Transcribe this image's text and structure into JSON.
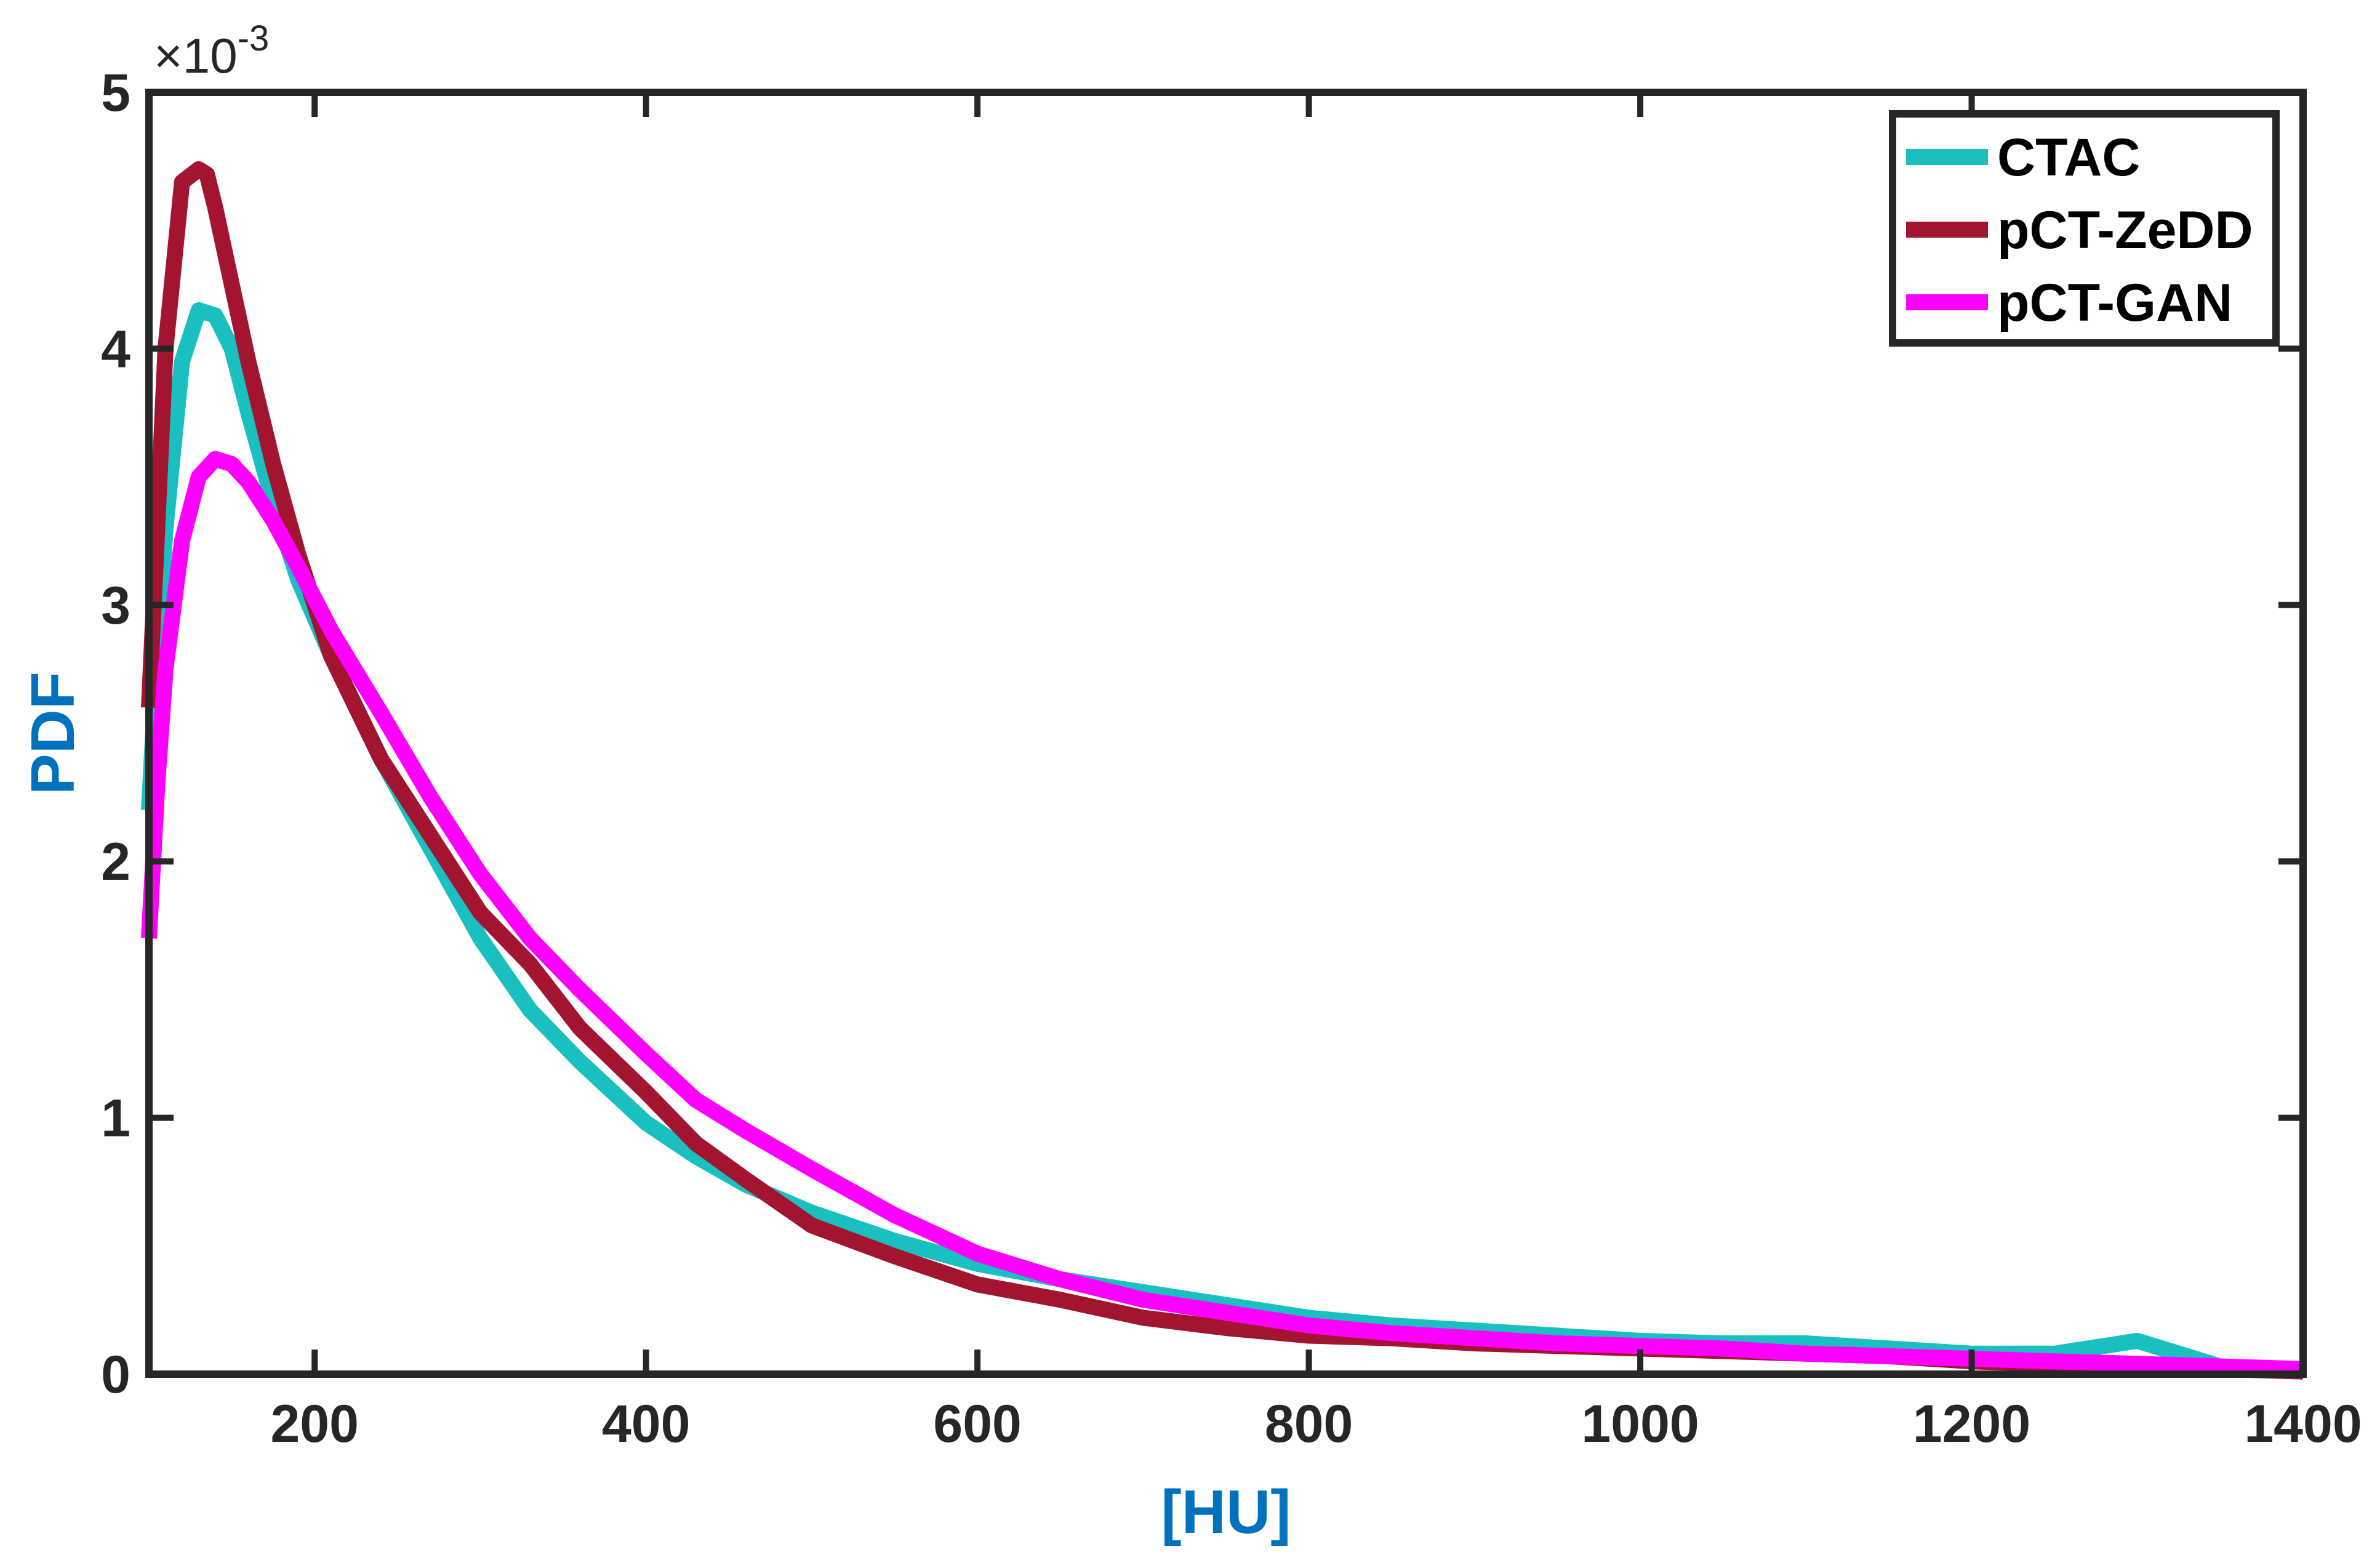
{
  "chart_data": {
    "type": "line",
    "xlabel": "[HU]",
    "ylabel": "PDF",
    "y_exponent_label": "×10",
    "y_exponent_power": "-3",
    "y_scale": 0.001,
    "xlim": [
      100,
      1400
    ],
    "ylim": [
      0,
      5
    ],
    "xticks": [
      200,
      400,
      600,
      800,
      1000,
      1200,
      1400
    ],
    "yticks": [
      0,
      1,
      2,
      3,
      4,
      5
    ],
    "xtick_labels": [
      "200",
      "400",
      "600",
      "800",
      "1000",
      "1200",
      "1400"
    ],
    "ytick_labels": [
      "0",
      "1",
      "2",
      "3",
      "4",
      "5"
    ],
    "grid": false,
    "legend_position": "top-right",
    "colors": {
      "CTAC": "#1ABFBF",
      "pCT-ZeDD": "#A2142F",
      "pCT-GAN": "#FF00FF",
      "axis": "#262626",
      "label": "#0072BD"
    },
    "series": [
      {
        "name": "CTAC",
        "x": [
          100,
          105,
          110,
          120,
          130,
          140,
          150,
          160,
          175,
          190,
          210,
          240,
          270,
          300,
          330,
          360,
          400,
          430,
          460,
          500,
          550,
          600,
          650,
          700,
          750,
          800,
          850,
          900,
          950,
          1000,
          1050,
          1100,
          1150,
          1200,
          1250,
          1280,
          1300,
          1320,
          1350,
          1400
        ],
        "y": [
          2.2,
          2.8,
          3.3,
          3.95,
          4.15,
          4.13,
          4.0,
          3.75,
          3.4,
          3.1,
          2.8,
          2.4,
          2.05,
          1.7,
          1.42,
          1.22,
          0.98,
          0.85,
          0.74,
          0.63,
          0.52,
          0.43,
          0.37,
          0.32,
          0.27,
          0.22,
          0.19,
          0.17,
          0.15,
          0.13,
          0.12,
          0.12,
          0.1,
          0.08,
          0.08,
          0.11,
          0.13,
          0.09,
          0.03,
          0.01
        ]
      },
      {
        "name": "pCT-ZeDD",
        "x": [
          100,
          105,
          110,
          120,
          130,
          135,
          140,
          150,
          160,
          175,
          190,
          210,
          240,
          270,
          300,
          330,
          360,
          400,
          430,
          460,
          500,
          550,
          600,
          650,
          700,
          750,
          800,
          850,
          900,
          950,
          1000,
          1050,
          1100,
          1150,
          1200,
          1250,
          1300,
          1350,
          1400
        ],
        "y": [
          2.6,
          3.3,
          4.0,
          4.65,
          4.7,
          4.68,
          4.55,
          4.25,
          3.95,
          3.55,
          3.2,
          2.8,
          2.4,
          2.1,
          1.8,
          1.6,
          1.35,
          1.1,
          0.9,
          0.76,
          0.58,
          0.46,
          0.35,
          0.29,
          0.22,
          0.18,
          0.15,
          0.14,
          0.12,
          0.11,
          0.1,
          0.09,
          0.08,
          0.07,
          0.05,
          0.04,
          0.03,
          0.02,
          0.01
        ]
      },
      {
        "name": "pCT-GAN",
        "x": [
          100,
          105,
          110,
          120,
          130,
          140,
          150,
          160,
          175,
          190,
          210,
          240,
          270,
          300,
          330,
          360,
          400,
          430,
          460,
          500,
          550,
          600,
          650,
          700,
          750,
          800,
          850,
          900,
          950,
          1000,
          1050,
          1100,
          1150,
          1200,
          1250,
          1300,
          1350,
          1400
        ],
        "y": [
          1.7,
          2.3,
          2.75,
          3.25,
          3.5,
          3.57,
          3.55,
          3.48,
          3.33,
          3.15,
          2.9,
          2.58,
          2.25,
          1.95,
          1.7,
          1.5,
          1.25,
          1.07,
          0.95,
          0.8,
          0.62,
          0.47,
          0.37,
          0.29,
          0.24,
          0.19,
          0.16,
          0.14,
          0.12,
          0.11,
          0.1,
          0.08,
          0.07,
          0.06,
          0.05,
          0.04,
          0.03,
          0.02
        ]
      }
    ]
  }
}
